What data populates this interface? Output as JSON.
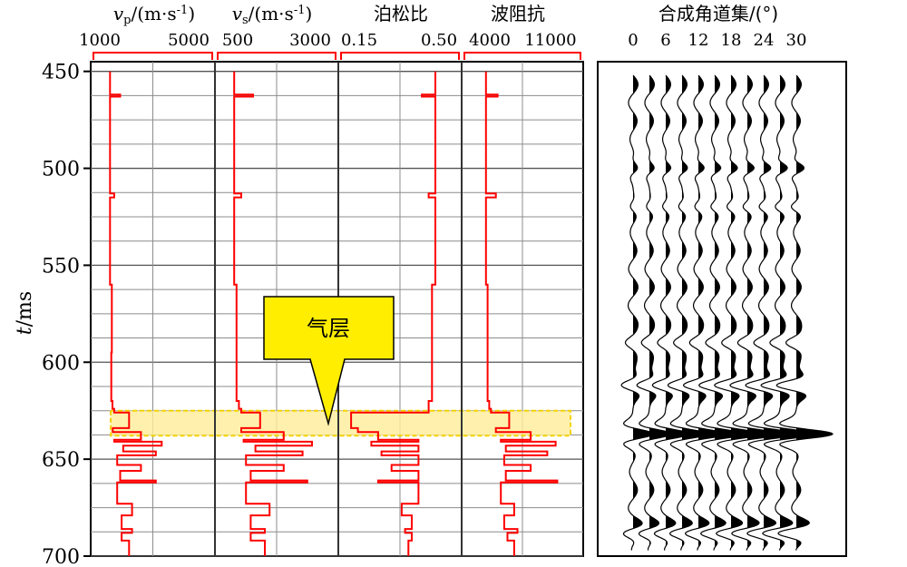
{
  "chart_data": {
    "type": "line",
    "y_axis": {
      "label_italic": "t",
      "label_unit": "/ms",
      "ticks": [
        450,
        500,
        550,
        600,
        650,
        700
      ],
      "ylim": [
        445,
        700
      ],
      "inverted": true
    },
    "tracks": [
      {
        "key": "vp",
        "title_italic": "v",
        "title_sub": "p",
        "title_unit": "/(m·s",
        "title_sup": "-1",
        "title_end": ")",
        "range_min_label": "1000",
        "range_max_label": "5000",
        "range": [
          1000,
          5000
        ],
        "background_values": [
          [
            450,
            1560
          ],
          [
            461,
            1560
          ],
          [
            462,
            1900
          ],
          [
            463,
            1560
          ],
          [
            512,
            1560
          ],
          [
            513,
            1700
          ],
          [
            515,
            1560
          ],
          [
            560,
            1620
          ],
          [
            595,
            1600
          ],
          [
            620,
            1640
          ],
          [
            624,
            1700
          ],
          [
            626,
            2200
          ],
          [
            634,
            1650
          ],
          [
            636,
            2600
          ],
          [
            640,
            1700
          ],
          [
            641,
            3300
          ],
          [
            643,
            2000
          ],
          [
            646,
            3100
          ],
          [
            648,
            1800
          ],
          [
            653,
            2600
          ],
          [
            656,
            1900
          ],
          [
            661,
            3100
          ],
          [
            662,
            1800
          ],
          [
            671,
            1800
          ],
          [
            673,
            2300
          ],
          [
            679,
            1950
          ],
          [
            686,
            2300
          ],
          [
            688,
            1950
          ],
          [
            692,
            2200
          ],
          [
            700,
            2200
          ]
        ]
      },
      {
        "key": "vs",
        "title_italic": "v",
        "title_sub": "s",
        "title_unit": "/(m·s",
        "title_sup": "-1",
        "title_end": ")",
        "range_min_label": "500",
        "range_max_label": "3000",
        "range": [
          500,
          3000
        ],
        "background_values": [
          [
            450,
            850
          ],
          [
            461,
            850
          ],
          [
            462,
            1250
          ],
          [
            463,
            850
          ],
          [
            512,
            850
          ],
          [
            513,
            1000
          ],
          [
            515,
            850
          ],
          [
            560,
            900
          ],
          [
            595,
            900
          ],
          [
            620,
            950
          ],
          [
            624,
            1000
          ],
          [
            626,
            1400
          ],
          [
            634,
            1000
          ],
          [
            636,
            1900
          ],
          [
            640,
            1050
          ],
          [
            641,
            2500
          ],
          [
            643,
            1300
          ],
          [
            646,
            2300
          ],
          [
            648,
            1100
          ],
          [
            653,
            1900
          ],
          [
            656,
            1200
          ],
          [
            661,
            2400
          ],
          [
            662,
            1100
          ],
          [
            671,
            1100
          ],
          [
            673,
            1600
          ],
          [
            679,
            1200
          ],
          [
            686,
            1500
          ],
          [
            688,
            1200
          ],
          [
            692,
            1500
          ],
          [
            700,
            1500
          ]
        ]
      },
      {
        "key": "poisson",
        "title": "泊松比",
        "range_min_label": "0.15",
        "range_max_label": "0.50",
        "range": [
          0.15,
          0.5
        ],
        "background_values": [
          [
            450,
            0.43
          ],
          [
            461,
            0.43
          ],
          [
            462,
            0.39
          ],
          [
            463,
            0.43
          ],
          [
            512,
            0.43
          ],
          [
            513,
            0.41
          ],
          [
            515,
            0.43
          ],
          [
            560,
            0.42
          ],
          [
            595,
            0.42
          ],
          [
            620,
            0.41
          ],
          [
            624,
            0.41
          ],
          [
            626,
            0.18
          ],
          [
            634,
            0.2
          ],
          [
            636,
            0.26
          ],
          [
            640,
            0.38
          ],
          [
            641,
            0.24
          ],
          [
            643,
            0.38
          ],
          [
            646,
            0.27
          ],
          [
            648,
            0.38
          ],
          [
            653,
            0.3
          ],
          [
            656,
            0.38
          ],
          [
            661,
            0.26
          ],
          [
            662,
            0.38
          ],
          [
            671,
            0.38
          ],
          [
            673,
            0.33
          ],
          [
            679,
            0.36
          ],
          [
            686,
            0.34
          ],
          [
            688,
            0.36
          ],
          [
            692,
            0.35
          ],
          [
            700,
            0.35
          ]
        ]
      },
      {
        "key": "impedance",
        "title": "波阻抗",
        "range_min_label": "4000",
        "range_max_label": "11000",
        "range": [
          4000,
          11000
        ],
        "background_values": [
          [
            450,
            5300
          ],
          [
            461,
            5300
          ],
          [
            462,
            6000
          ],
          [
            463,
            5300
          ],
          [
            512,
            5300
          ],
          [
            513,
            5900
          ],
          [
            515,
            5300
          ],
          [
            560,
            5400
          ],
          [
            595,
            5400
          ],
          [
            620,
            5500
          ],
          [
            624,
            5600
          ],
          [
            626,
            6700
          ],
          [
            634,
            5900
          ],
          [
            636,
            8000
          ],
          [
            640,
            6200
          ],
          [
            641,
            9500
          ],
          [
            643,
            6500
          ],
          [
            646,
            9000
          ],
          [
            648,
            6400
          ],
          [
            653,
            8000
          ],
          [
            656,
            6500
          ],
          [
            661,
            9600
          ],
          [
            662,
            6200
          ],
          [
            671,
            6200
          ],
          [
            673,
            7000
          ],
          [
            679,
            6400
          ],
          [
            686,
            7200
          ],
          [
            688,
            6600
          ],
          [
            692,
            7000
          ],
          [
            700,
            7000
          ]
        ]
      }
    ],
    "gather": {
      "title": "合成角道集/(°)",
      "angle_ticks": [
        "0",
        "6",
        "12",
        "18",
        "24",
        "30"
      ],
      "angles": [
        0,
        3,
        6,
        9,
        12,
        15,
        18,
        21,
        24,
        27,
        30
      ],
      "events": [
        {
          "t": 520,
          "amp": -0.35
        },
        {
          "t": 612,
          "amp": -1.2
        },
        {
          "t": 637,
          "amp": 2.4
        },
        {
          "t": 688,
          "amp": -1.3
        },
        {
          "t": 500,
          "amp": 0.5
        },
        {
          "t": 590,
          "amp": -0.4
        }
      ]
    },
    "highlight": {
      "label": "气层",
      "t_top": 625,
      "t_bottom": 636
    },
    "colors": {
      "curve": "#ff0000",
      "curve_in_zone": "#ff8800",
      "zone_fill": "#ffee99",
      "zone_border": "#f5d200",
      "callout_fill": "#ffee00",
      "grid": "#8c8c8c"
    }
  }
}
